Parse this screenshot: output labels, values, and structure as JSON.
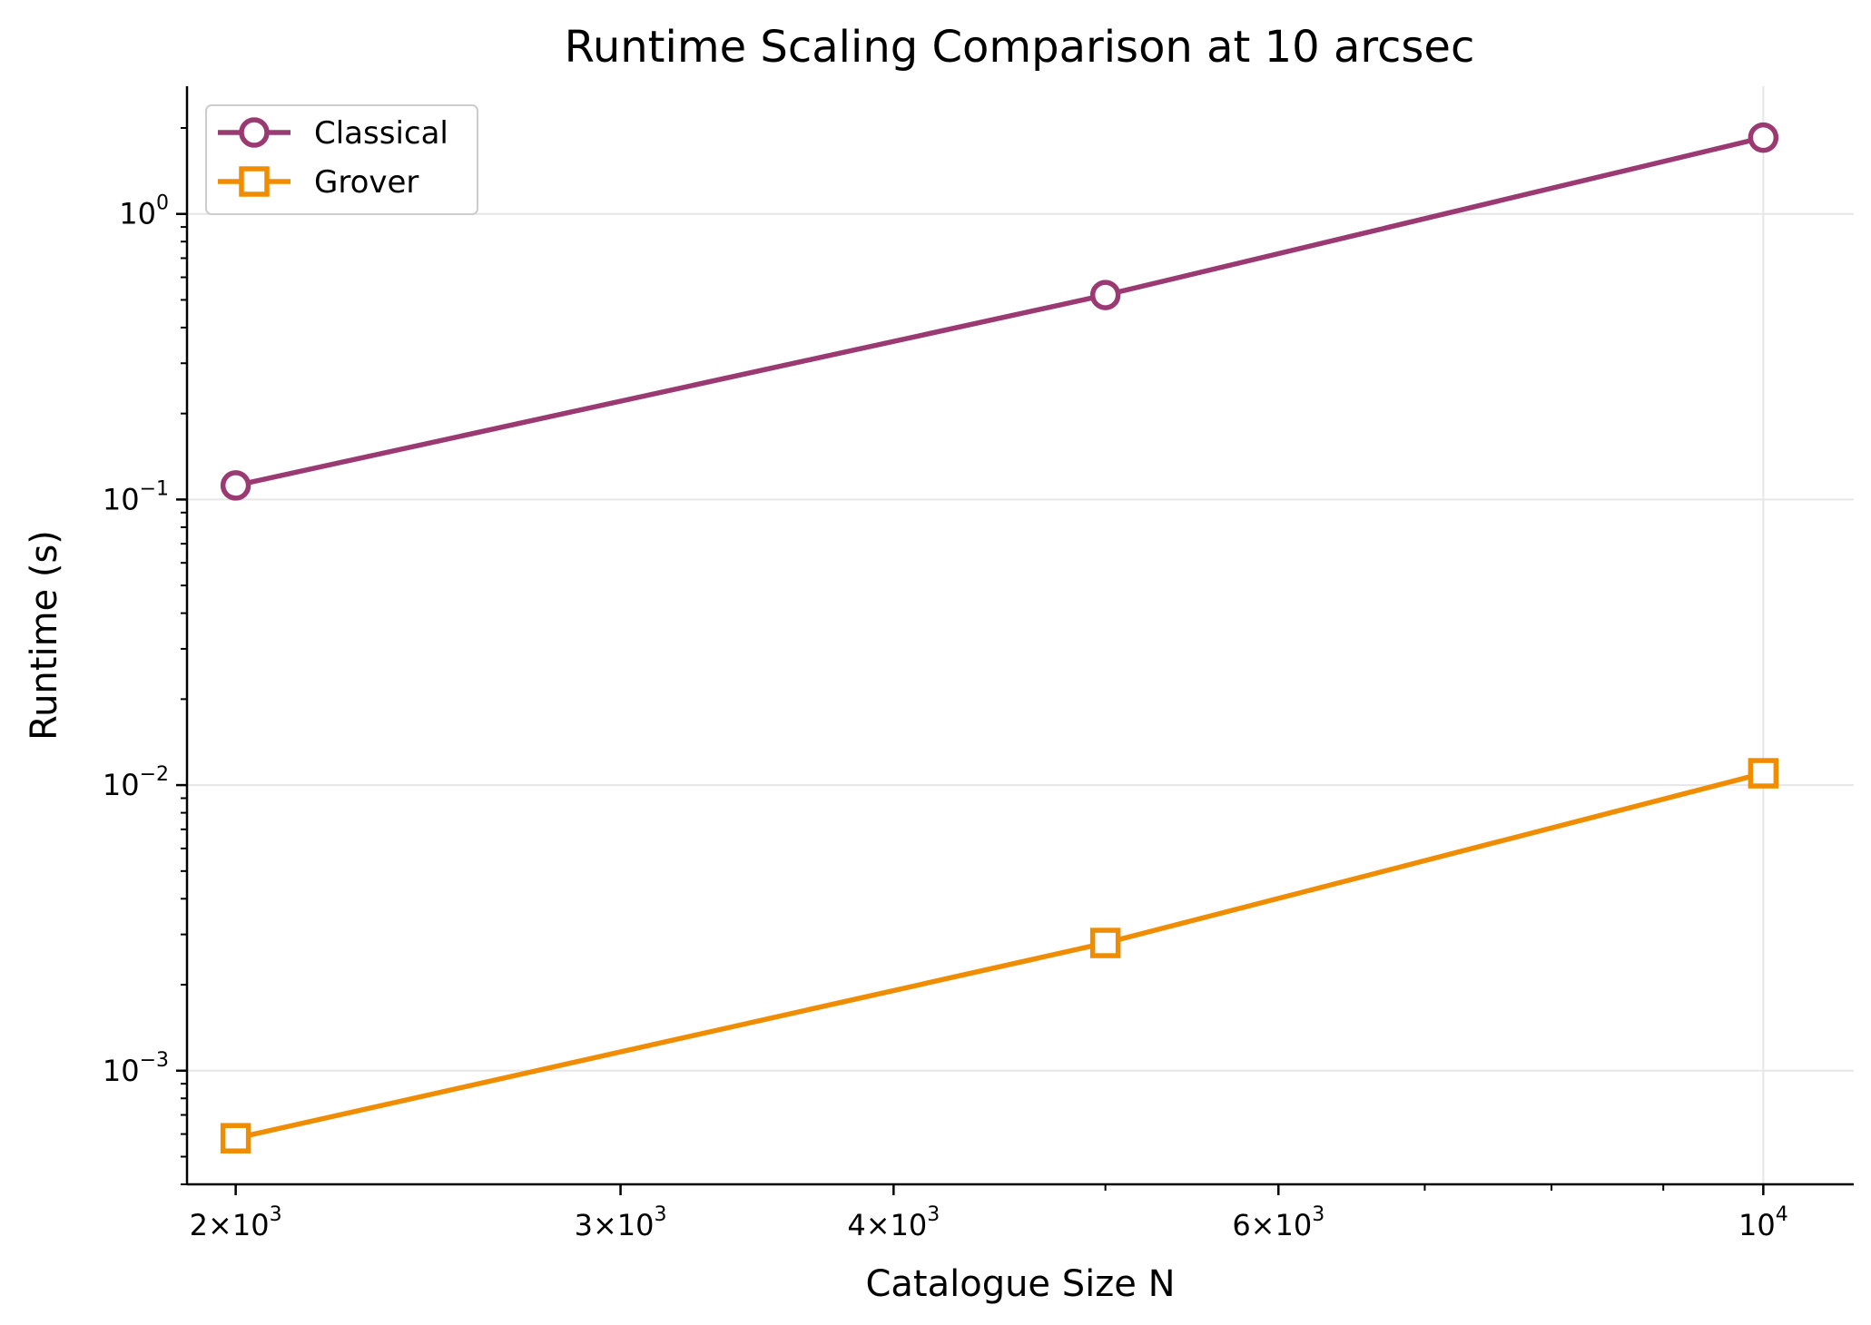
{
  "chart_data": {
    "type": "line",
    "title": "Runtime Scaling Comparison at 10 arcsec",
    "xlabel": "Catalogue Size N",
    "ylabel": "Runtime (s)",
    "xscale": "log",
    "yscale": "log",
    "xlim": [
      1900,
      11000
    ],
    "ylim": [
      0.0004,
      2.8
    ],
    "x": [
      2000,
      5000,
      10000
    ],
    "xticks": [
      {
        "value": 2000,
        "mantissa": "2",
        "exponent": "3"
      },
      {
        "value": 3000,
        "mantissa": "3",
        "exponent": "3"
      },
      {
        "value": 4000,
        "mantissa": "4",
        "exponent": "3"
      },
      {
        "value": 6000,
        "mantissa": "6",
        "exponent": "3"
      },
      {
        "value": 10000,
        "mantissa": "",
        "exponent": "4"
      }
    ],
    "yticks": [
      {
        "value": 1,
        "exponent": "0"
      },
      {
        "value": 0.1,
        "exponent": "−1"
      },
      {
        "value": 0.01,
        "exponent": "−2"
      },
      {
        "value": 0.001,
        "exponent": "−3"
      }
    ],
    "grid": true,
    "legend_position": "top-left",
    "series": [
      {
        "name": "Classical",
        "values": [
          0.112,
          0.52,
          1.85
        ],
        "color": "#9b3a72",
        "marker": "circle"
      },
      {
        "name": "Grover",
        "values": [
          0.00058,
          0.0028,
          0.011
        ],
        "color": "#f08c00",
        "marker": "square"
      }
    ]
  }
}
